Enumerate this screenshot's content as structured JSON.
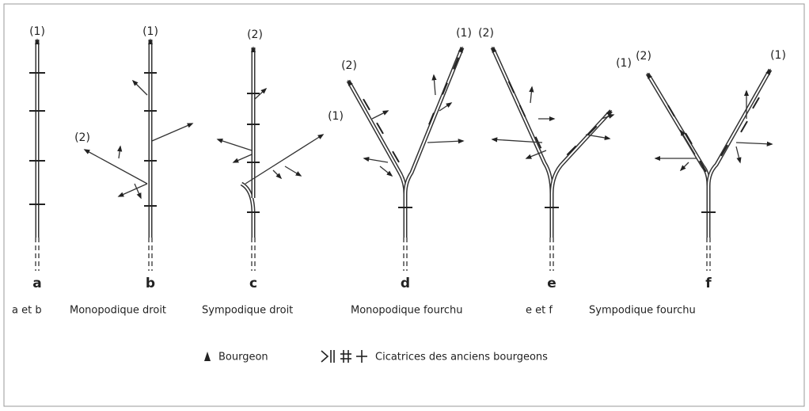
{
  "diagrams": [
    {
      "letter": "a",
      "branch_labels": [
        "(1)"
      ]
    },
    {
      "letter": "b",
      "branch_labels": [
        "(1)",
        "(2)"
      ]
    },
    {
      "letter": "c",
      "branch_labels": [
        "(2)",
        "(1)"
      ]
    },
    {
      "letter": "d",
      "branch_labels": [
        "(2)",
        "(1)"
      ]
    },
    {
      "letter": "e",
      "branch_labels": [
        "(2)",
        "(1)"
      ]
    },
    {
      "letter": "f",
      "branch_labels": [
        "(2)",
        "(1)"
      ]
    }
  ],
  "captions": [
    "a et b",
    "Monopodique droit",
    "Sympodique droit",
    "Monopodique fourchu",
    "e et f",
    "Sympodique fourchu"
  ],
  "legend": {
    "bud": "Bourgeon",
    "scars": "Cicatrices des anciens bourgeons"
  }
}
